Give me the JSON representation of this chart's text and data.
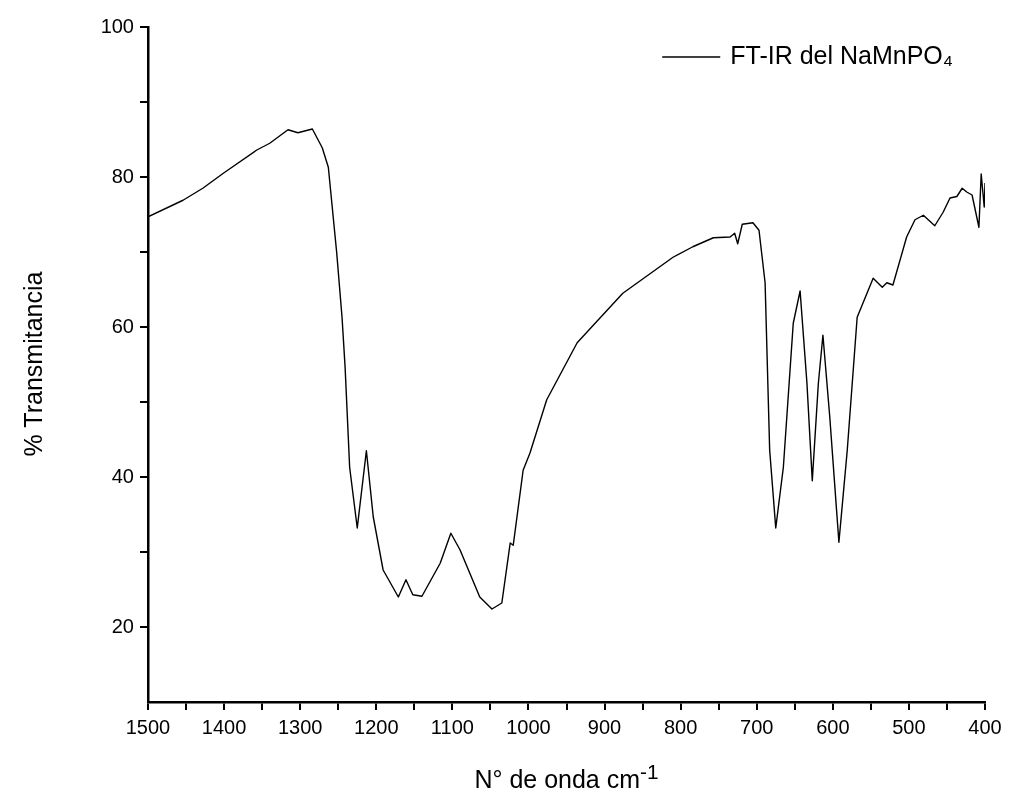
{
  "chart_data": {
    "type": "line",
    "xlabel": "N° de onda cm$^{-1}$",
    "ylabel": "% Transmitancia",
    "legend": "top right",
    "marker": "none",
    "xlim": [
      1500,
      400
    ],
    "xticks": [
      1500,
      {
        "value": 1450,
        "label": null
      },
      1400,
      {
        "value": 1350,
        "label": null
      },
      1300,
      {
        "value": 1250,
        "label": null
      },
      1200,
      {
        "value": 1150,
        "label": null
      },
      1100,
      {
        "value": 1050,
        "label": null
      },
      1000,
      {
        "value": 950,
        "label": null
      },
      900,
      {
        "value": 850,
        "label": null
      },
      800,
      {
        "value": 750,
        "label": null
      },
      700,
      {
        "value": 650,
        "label": null
      },
      600,
      {
        "value": 550,
        "label": null
      },
      500,
      {
        "value": 450,
        "label": null
      },
      400
    ],
    "ylim": [
      10,
      100
    ],
    "yticks": [
      {
        "value": 30,
        "label": null
      },
      20,
      {
        "value": 50,
        "label": null
      },
      40,
      {
        "value": 70,
        "label": null
      },
      60,
      {
        "value": 90,
        "label": null
      },
      80,
      100
    ],
    "series": [
      {
        "name": "FT-IR del NaMnPO₄",
        "color": "#000000",
        "x": [
          1500,
          1454,
          1428,
          1401,
          1357,
          1340,
          1316,
          1303,
          1284,
          1271,
          1263,
          1252,
          1245,
          1241,
          1235,
          1225,
          1213,
          1204,
          1191,
          1171,
          1161,
          1152,
          1140,
          1116,
          1102,
          1090,
          1064,
          1048,
          1035,
          1024,
          1020,
          1007,
          998,
          976,
          936,
          876,
          810,
          784,
          757,
          735,
          729,
          725,
          719,
          705,
          697,
          689,
          683,
          675,
          665,
          652,
          643,
          634,
          627,
          619,
          613,
          604,
          592,
          581,
          568,
          547,
          535,
          529,
          521,
          503,
          492,
          481,
          466,
          455,
          446,
          437,
          430,
          424,
          417,
          408,
          405,
          401,
          400
        ],
        "values": [
          74.7,
          76.9,
          78.5,
          80.5,
          83.6,
          84.5,
          86.3,
          85.9,
          86.4,
          83.9,
          81.3,
          69.9,
          61.3,
          54.7,
          41.3,
          33.2,
          43.5,
          34.7,
          27.6,
          24.0,
          26.3,
          24.3,
          24.1,
          28.5,
          32.5,
          30.3,
          24.0,
          22.4,
          23.2,
          31.2,
          30.9,
          40.9,
          43.2,
          50.3,
          57.9,
          64.5,
          69.3,
          70.7,
          71.9,
          72.0,
          72.5,
          71.1,
          73.7,
          73.9,
          72.9,
          65.9,
          43.6,
          33.2,
          41.3,
          60.5,
          64.8,
          52.5,
          39.5,
          52.5,
          58.9,
          48.0,
          31.3,
          43.6,
          61.3,
          66.5,
          65.3,
          65.9,
          65.6,
          72.0,
          74.3,
          74.9,
          73.5,
          75.3,
          77.2,
          77.4,
          78.5,
          78.0,
          77.6,
          73.3,
          80.4,
          76.0,
          79.2
        ]
      }
    ]
  }
}
